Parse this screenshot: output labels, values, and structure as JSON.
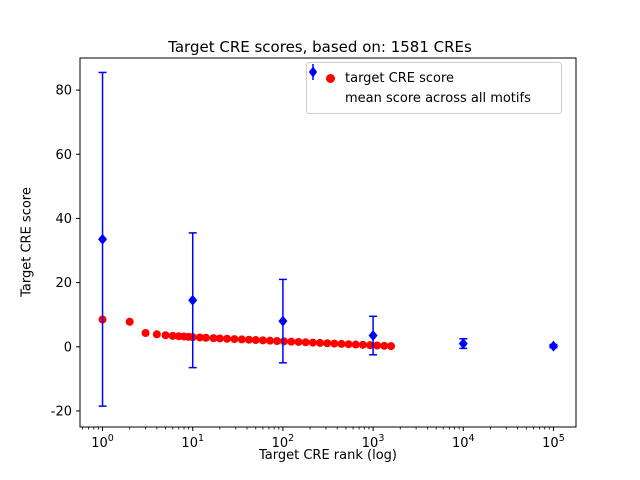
{
  "chart_data": {
    "type": "scatter",
    "title": "Target CRE scores, based on: 1581 CREs",
    "xlabel": "Target CRE rank (log)",
    "ylabel": "Target CRE score",
    "x_scale": "log",
    "xlim_log": [
      -0.25,
      5.25
    ],
    "ylim": [
      -25,
      90
    ],
    "yticks": [
      -20,
      0,
      20,
      40,
      60,
      80
    ],
    "xtick_exponents": [
      0,
      1,
      2,
      3,
      4,
      5
    ],
    "grid": false,
    "legend_position": "upper right",
    "colors": {
      "red": "#ff0000",
      "blue": "#0000ff",
      "frame": "#000000",
      "legend_border": "#cccccc"
    },
    "legend": [
      {
        "label": "target CRE score",
        "marker": "circle",
        "color": "#ff0000"
      },
      {
        "label": "mean score across all motifs",
        "marker": "diamond-errorbar",
        "color": "#0000ff"
      }
    ],
    "series": [
      {
        "name": "target CRE score",
        "type": "scatter",
        "marker": "circle",
        "color": "#ff0000",
        "points": [
          [
            1,
            8.5
          ],
          [
            2,
            7.8
          ],
          [
            3,
            4.3
          ],
          [
            4,
            3.9
          ],
          [
            5,
            3.6
          ],
          [
            6,
            3.4
          ],
          [
            7,
            3.3
          ],
          [
            8,
            3.2
          ],
          [
            9,
            3.1
          ],
          [
            10,
            3.0
          ],
          [
            12,
            2.9
          ],
          [
            14,
            2.8
          ],
          [
            17,
            2.7
          ],
          [
            20,
            2.6
          ],
          [
            24,
            2.5
          ],
          [
            29,
            2.4
          ],
          [
            35,
            2.3
          ],
          [
            42,
            2.2
          ],
          [
            50,
            2.1
          ],
          [
            60,
            2.0
          ],
          [
            72,
            1.9
          ],
          [
            86,
            1.8
          ],
          [
            103,
            1.7
          ],
          [
            124,
            1.6
          ],
          [
            149,
            1.5
          ],
          [
            179,
            1.4
          ],
          [
            215,
            1.3
          ],
          [
            258,
            1.2
          ],
          [
            310,
            1.1
          ],
          [
            372,
            1.0
          ],
          [
            446,
            0.9
          ],
          [
            535,
            0.8
          ],
          [
            642,
            0.7
          ],
          [
            770,
            0.6
          ],
          [
            924,
            0.5
          ],
          [
            1109,
            0.4
          ],
          [
            1331,
            0.3
          ],
          [
            1581,
            0.2
          ]
        ]
      },
      {
        "name": "mean score across all motifs",
        "type": "errorbar",
        "marker": "diamond",
        "color": "#0000ff",
        "x": [
          1,
          10,
          100,
          1000,
          10000,
          100000
        ],
        "y": [
          33.5,
          14.5,
          8.0,
          3.5,
          1.0,
          0.2
        ],
        "yerr": [
          52,
          21,
          13,
          6,
          1.5,
          0.5
        ]
      }
    ]
  }
}
